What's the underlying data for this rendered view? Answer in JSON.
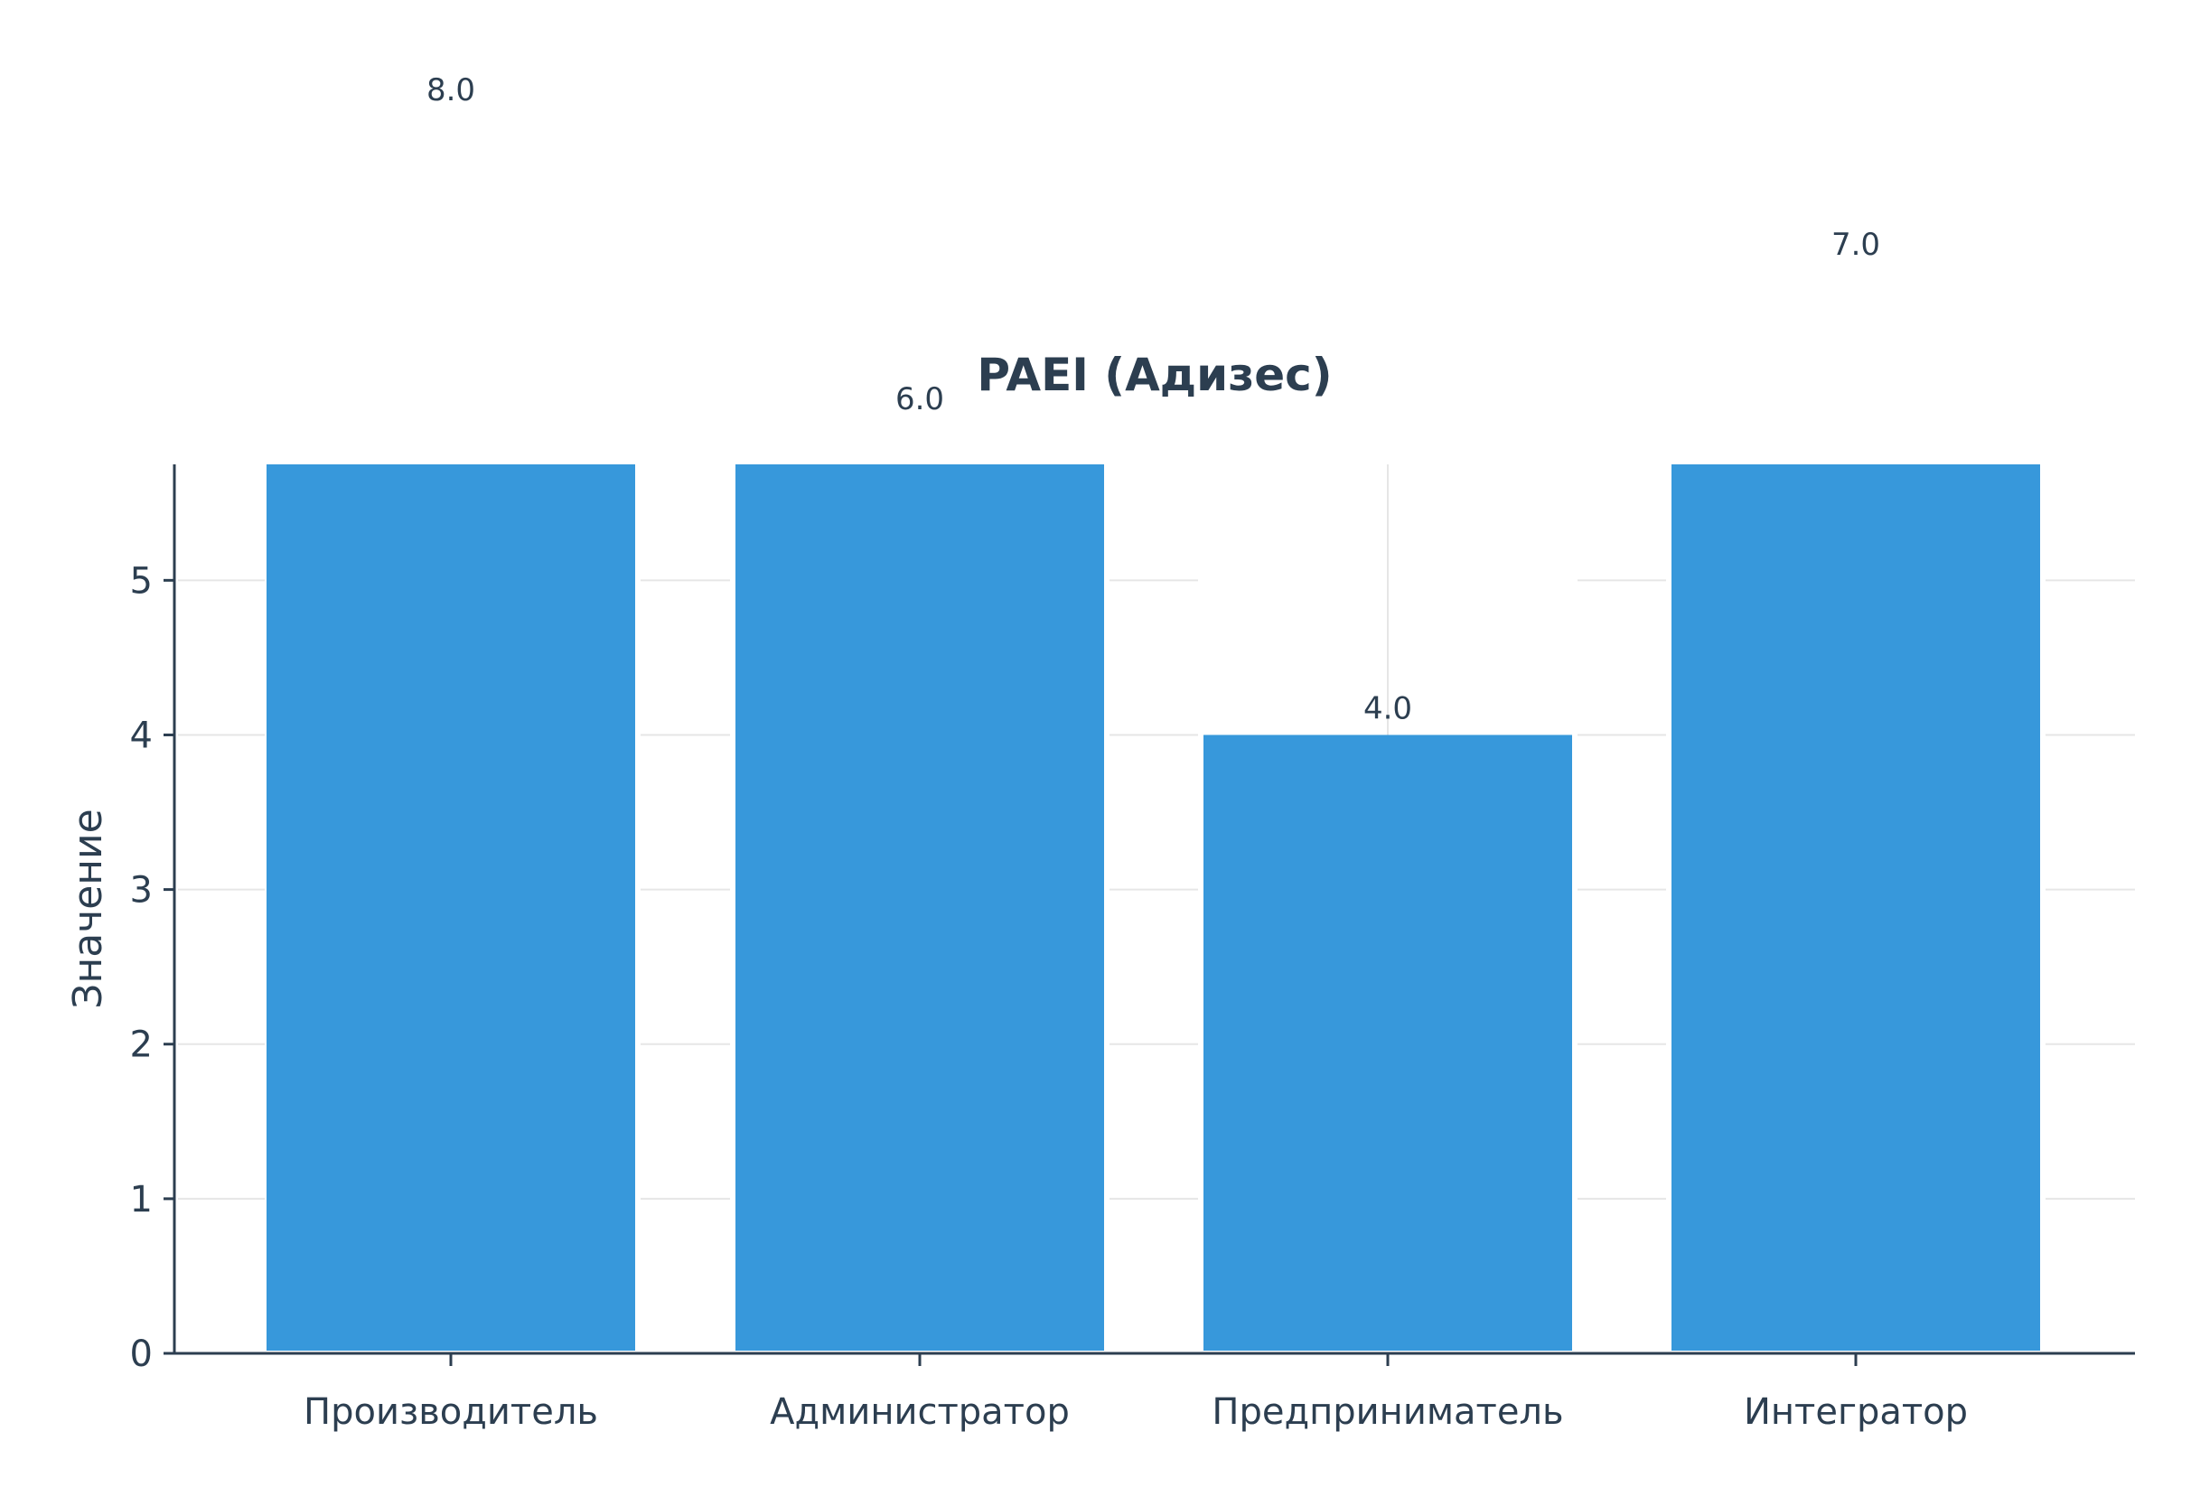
{
  "chart_data": {
    "type": "bar",
    "title": "PAEI (Адизес)",
    "xlabel": "",
    "ylabel": "Значение",
    "categories": [
      "Производитель",
      "Администратор",
      "Предприниматель",
      "Интегратор"
    ],
    "values": [
      8.0,
      6.0,
      4.0,
      7.0
    ],
    "value_labels": [
      "8.0",
      "6.0",
      "4.0",
      "7.0"
    ],
    "yticks": [
      0,
      1,
      2,
      3,
      4,
      5
    ],
    "ylim": [
      0,
      5.75
    ],
    "grid": true,
    "bar_color": "#3798db",
    "text_color": "#2c3e50",
    "grid_color": "#e6e6e6"
  }
}
